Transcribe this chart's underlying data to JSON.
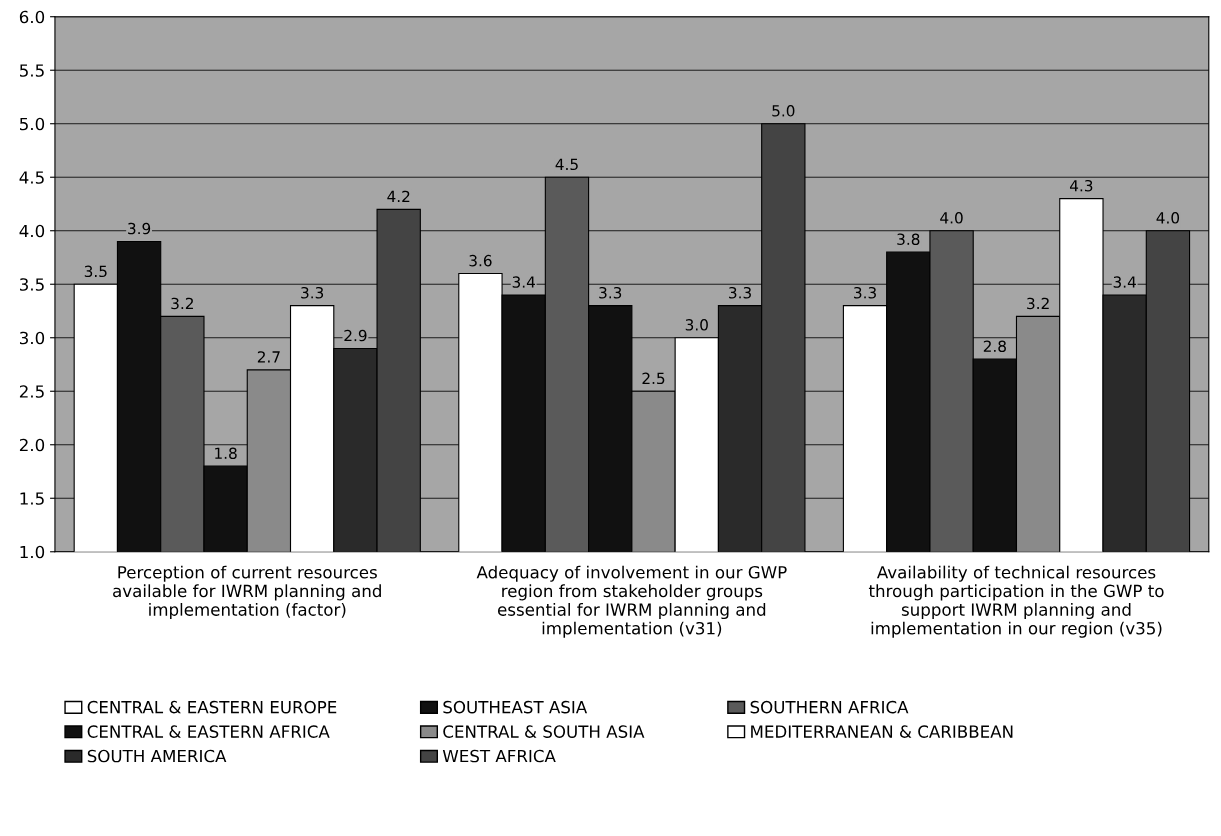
{
  "chart_data": {
    "type": "bar",
    "categories": [
      "Perception of current resources\navailable for IWRM planning and\nimplementation (factor)",
      "Adequacy of involvement in our GWP\nregion from stakeholder groups\nessential for IWRM planning and\nimplementation (v31)",
      "Availability of technical resources\nthrough participation in the GWP to\nsupport IWRM planning and\nimplementation in our region (v35)"
    ],
    "series": [
      {
        "name": "CENTRAL & EASTERN EUROPE",
        "color": "#ffffff",
        "values": [
          3.5,
          3.6,
          3.3
        ],
        "value_labels": [
          "3.5",
          "3.6",
          "3.3"
        ]
      },
      {
        "name": "SOUTHEAST ASIA",
        "color": "#111111",
        "values": [
          3.9,
          3.4,
          3.8
        ],
        "value_labels": [
          "3.9",
          "3.4",
          "3.8"
        ]
      },
      {
        "name": "SOUTHERN AFRICA",
        "color": "#5a5a5a",
        "values": [
          3.2,
          4.5,
          4.0
        ],
        "value_labels": [
          "3.2",
          "4.5",
          "4.0"
        ]
      },
      {
        "name": "CENTRAL & EASTERN AFRICA",
        "color": "#111111",
        "values": [
          1.8,
          3.3,
          2.8
        ],
        "value_labels": [
          "1.8",
          "3.3",
          "2.8"
        ]
      },
      {
        "name": "CENTRAL & SOUTH ASIA",
        "color": "#8a8a8a",
        "values": [
          2.7,
          2.5,
          3.2
        ],
        "value_labels": [
          "2.7",
          "2.5",
          "3.2"
        ]
      },
      {
        "name": "MEDITERRANEAN & CARIBBEAN",
        "color": "#ffffff",
        "values": [
          3.3,
          3.0,
          4.3
        ],
        "value_labels": [
          "3.3",
          "3.0",
          "4.3"
        ]
      },
      {
        "name": "SOUTH AMERICA",
        "color": "#2a2a2a",
        "values": [
          2.9,
          3.3,
          3.4
        ],
        "value_labels": [
          "2.9",
          "3.3",
          "3.4"
        ]
      },
      {
        "name": "WEST AFRICA",
        "color": "#444444",
        "values": [
          4.2,
          5.0,
          4.0
        ],
        "value_labels": [
          "4.2",
          "5.0",
          "4.0"
        ]
      }
    ],
    "ylim": [
      1.0,
      6.0
    ],
    "yticks": [
      {
        "value": 1,
        "label": "1.0"
      },
      1.5,
      {
        "value": 2,
        "label": "2.0"
      },
      2.5,
      {
        "value": 3,
        "label": "3.0"
      },
      3.5,
      {
        "value": 4,
        "label": "4.0"
      },
      4.5,
      {
        "value": 5,
        "label": "5.0"
      },
      5.5,
      {
        "value": 6,
        "label": "6.0"
      }
    ],
    "grid": "y",
    "legend": "bottom"
  }
}
